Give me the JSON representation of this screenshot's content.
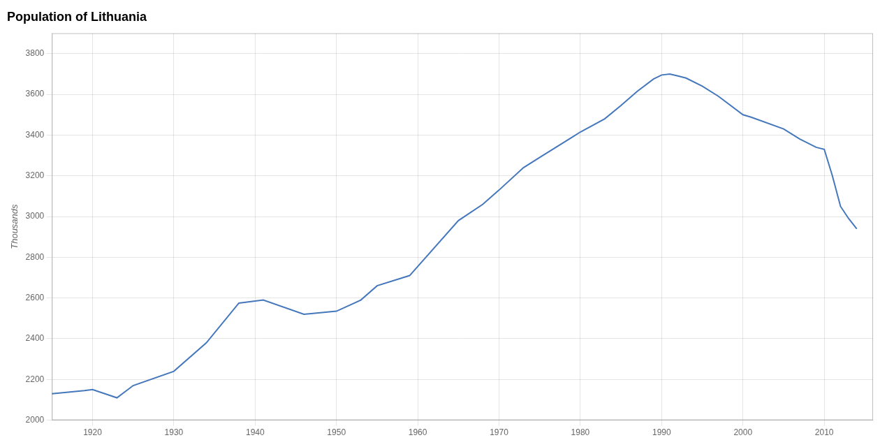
{
  "chart_data": {
    "type": "line",
    "title": "Population of Lithuania",
    "ylabel": "Thousands",
    "color": "#4477bb",
    "x": [
      1915,
      1919,
      1920,
      1923,
      1925,
      1930,
      1934,
      1938,
      1939,
      1941,
      1946,
      1950,
      1953,
      1955,
      1959,
      1961,
      1965,
      1968,
      1970,
      1973,
      1975,
      1979,
      1980,
      1983,
      1985,
      1987,
      1989,
      1990,
      1991,
      1992,
      1993,
      1995,
      1997,
      2000,
      2001,
      2005,
      2007,
      2009,
      2010,
      2011,
      2012,
      2013,
      2014
    ],
    "values": [
      2130,
      2145,
      2150,
      2110,
      2170,
      2240,
      2380,
      2575,
      2580,
      2590,
      2520,
      2535,
      2590,
      2660,
      2710,
      2800,
      2980,
      3060,
      3130,
      3240,
      3290,
      3390,
      3415,
      3480,
      3545,
      3615,
      3675,
      3695,
      3700,
      3690,
      3680,
      3640,
      3590,
      3500,
      3488,
      3430,
      3380,
      3340,
      3330,
      3200,
      3050,
      2990,
      2940
    ],
    "xlim": [
      1915,
      2016
    ],
    "xticks": [
      1920,
      1930,
      1940,
      1950,
      1960,
      1970,
      1980,
      1990,
      2000,
      2010
    ],
    "ylim": [
      2000,
      3900
    ],
    "yticks": [
      2000,
      2200,
      2400,
      2600,
      2800,
      3000,
      3200,
      3400,
      3600,
      3800
    ],
    "grid": true
  }
}
